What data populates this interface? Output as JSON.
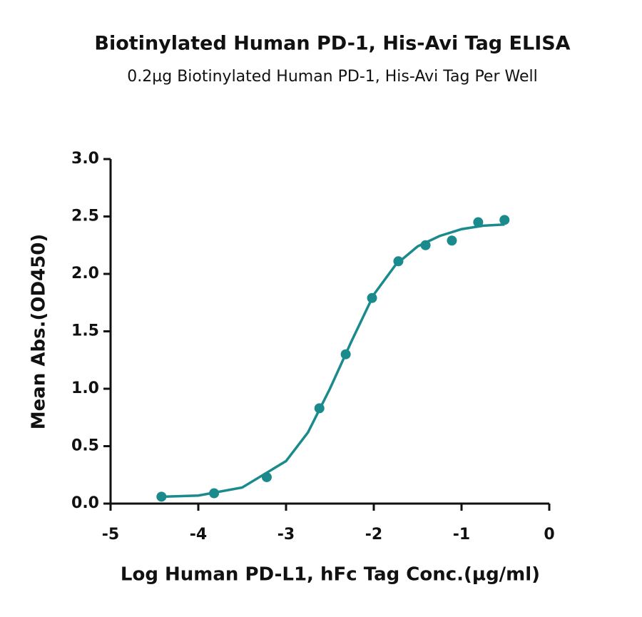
{
  "chart_data": {
    "type": "scatter",
    "title": "Biotinylated Human PD-1, His-Avi Tag ELISA",
    "subtitle": "0.2µg Biotinylated Human PD-1, His-Avi Tag Per Well",
    "x_label": "Log Human PD-L1, hFc Tag Conc.(µg/ml)",
    "y_label": "Mean Abs.(OD450)",
    "xlim": [
      -5,
      0
    ],
    "xticks": [
      -5,
      -4,
      -3,
      -2,
      -1,
      0
    ],
    "ylim": [
      0,
      3.0
    ],
    "yticks": [
      {
        "value": 0,
        "label": "0.0"
      },
      0.5,
      {
        "value": 1,
        "label": "1.0"
      },
      1.5,
      {
        "value": 2,
        "label": "2.0"
      },
      2.5,
      {
        "value": 3,
        "label": "3.0"
      }
    ],
    "series": [
      {
        "kind": "points",
        "color": "#1b8a8c",
        "x": [
          -4.42,
          -3.82,
          -3.22,
          -2.62,
          -2.32,
          -2.02,
          -1.72,
          -1.41,
          -1.11,
          -0.81,
          -0.51
        ],
        "values": [
          0.06,
          0.09,
          0.23,
          0.83,
          1.3,
          1.79,
          2.11,
          2.25,
          2.29,
          2.45,
          2.47
        ]
      },
      {
        "kind": "fit",
        "color": "#1b8a8c",
        "x": [
          -4.42,
          -4,
          -3.5,
          -3,
          -2.75,
          -2.5,
          -2.25,
          -2,
          -1.75,
          -1.5,
          -1.25,
          -1,
          -0.75,
          -0.51
        ],
        "values": [
          0.06,
          0.07,
          0.14,
          0.37,
          0.62,
          1.0,
          1.42,
          1.82,
          2.08,
          2.24,
          2.33,
          2.39,
          2.42,
          2.43
        ]
      }
    ]
  }
}
